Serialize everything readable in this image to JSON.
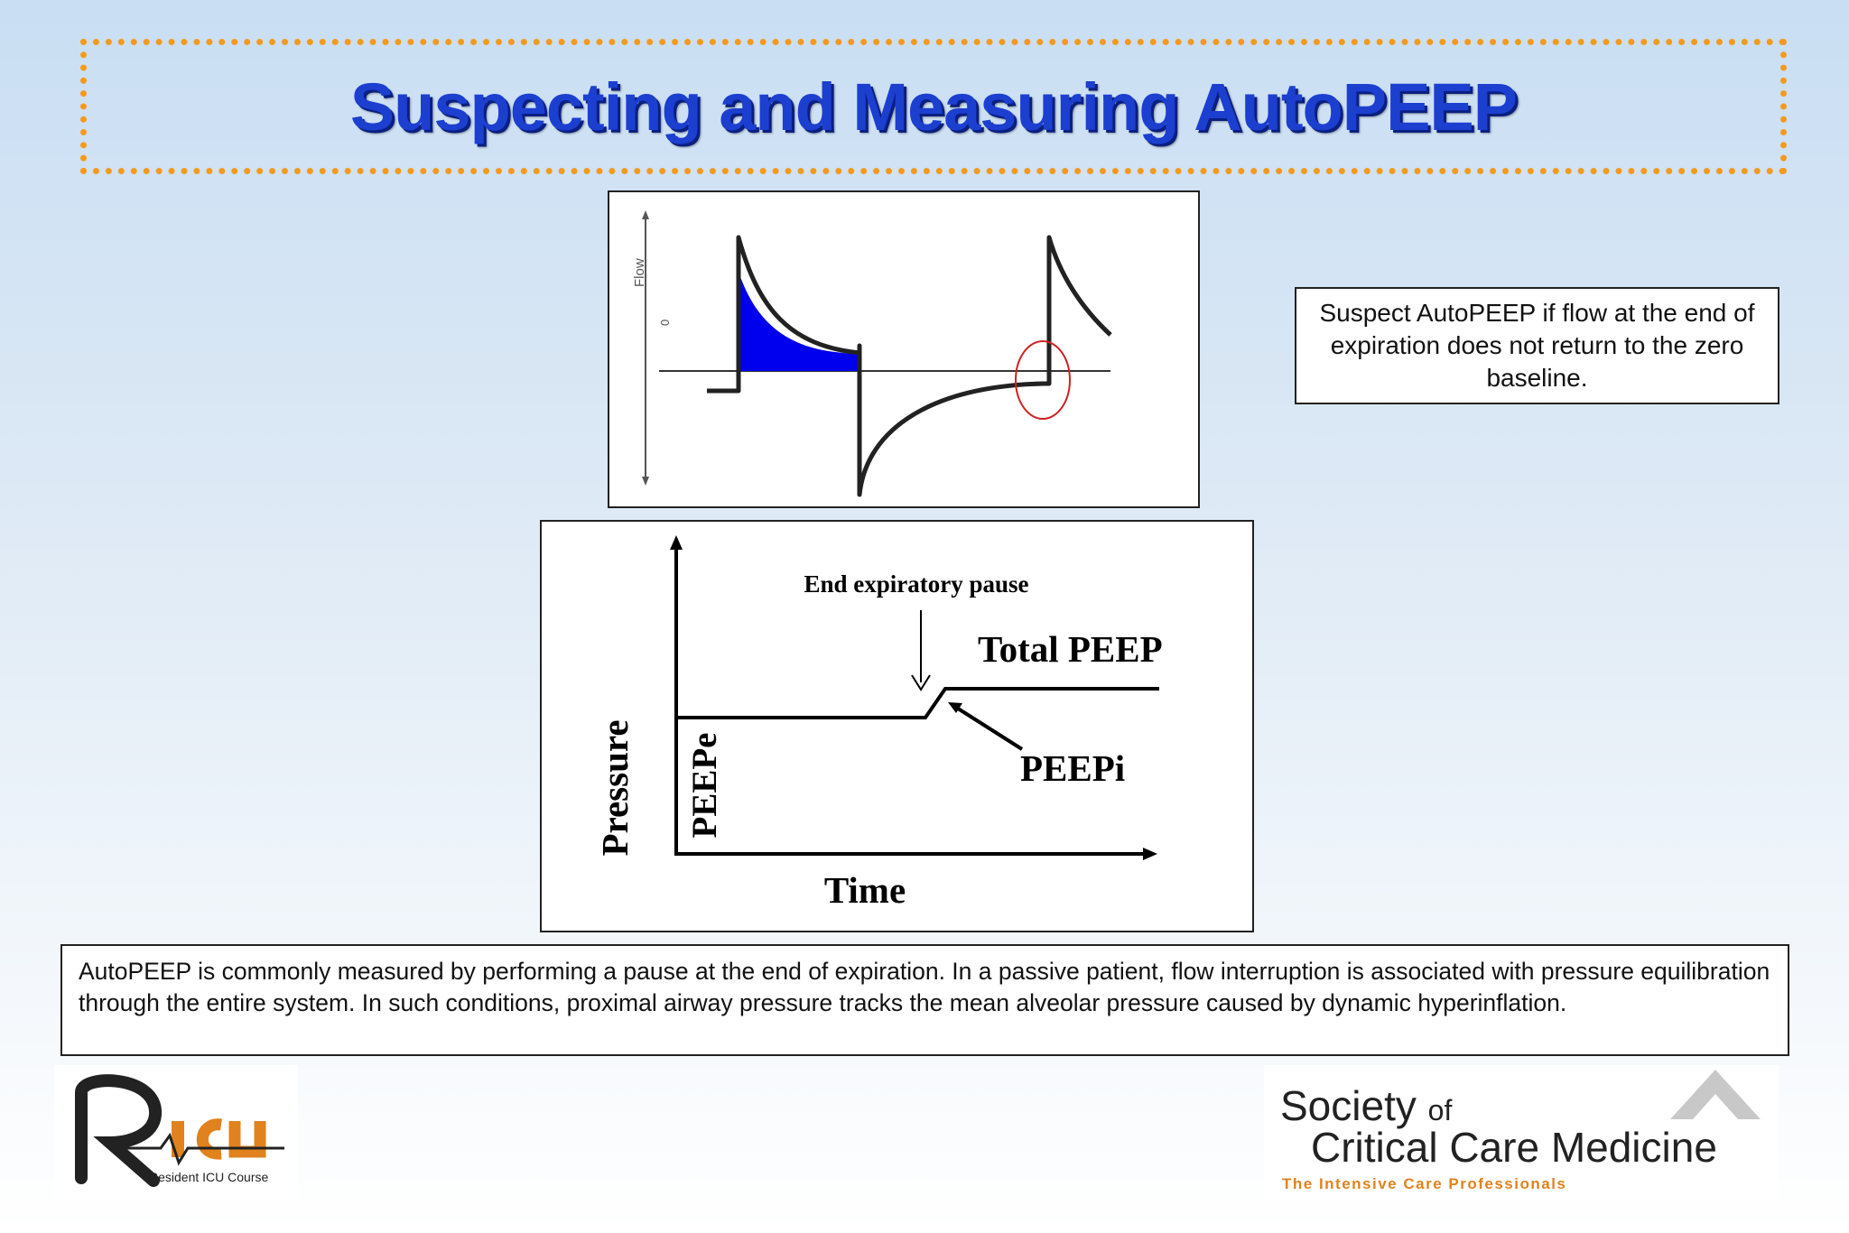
{
  "title": "Suspecting and Measuring AutoPEEP",
  "flow_chart": {
    "y_label": "Flow",
    "zero_label": "0",
    "fill_color": "#0000ee",
    "marker_color": "#cc2222"
  },
  "pressure_chart": {
    "y_label": "Pressure",
    "x_label": "Time",
    "annotation_pause": "End expiratory pause",
    "annotation_total": "Total PEEP",
    "annotation_peepi": "PEEPi",
    "annotation_peepe": "PEEPe"
  },
  "note": "Suspect AutoPEEP if flow at the end of expiration does not return to the zero baseline.",
  "description": "AutoPEEP  is commonly measured by performing a pause at the end of expiration.  In a passive patient, flow interruption is associated with pressure equilibration through the entire system. In such conditions,  proximal airway pressure tracks the mean alveolar pressure caused by dynamic hyperinflation.",
  "logos": {
    "left_sub": "Resident ICU Course",
    "right_line1": "Society",
    "right_of": "of",
    "right_line2": "Critical Care Medicine",
    "right_tagline": "The Intensive Care Professionals"
  }
}
